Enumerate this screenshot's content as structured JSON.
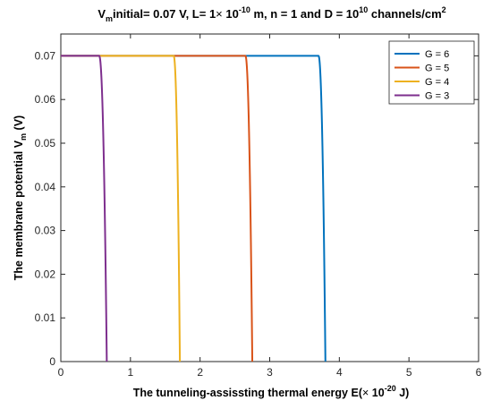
{
  "chart_data": {
    "type": "line",
    "title": {
      "p1": "V",
      "p1_sub": "m",
      "p2": "initial= 0.07 V, L= 1",
      "times": "×",
      "p3": " 10",
      "p3_sup": "-10",
      "p4": " m, n = 1 and D = 10",
      "p4_sup": "10",
      "p5": " channels/cm",
      "p5_sup": "2"
    },
    "xlabel": {
      "p1": "The tunneling-assissting thermal energy E(",
      "times": "×",
      "p2": " 10",
      "p2_sup": "-20",
      "p3": " J)"
    },
    "ylabel": {
      "p1": "The membrane potential V",
      "p1_sub": "m",
      "p2": " (V)"
    },
    "xlim": [
      0,
      6
    ],
    "ylim": [
      0,
      0.075
    ],
    "xticks": [
      0,
      1,
      2,
      3,
      4,
      5,
      6
    ],
    "xtick_labels": [
      "0",
      "1",
      "2",
      "3",
      "4",
      "5",
      "6"
    ],
    "yticks": [
      0,
      0.01,
      0.02,
      0.03,
      0.04,
      0.05,
      0.06,
      0.07
    ],
    "ytick_labels": [
      "0",
      "0.01",
      "0.02",
      "0.03",
      "0.04",
      "0.05",
      "0.06",
      "0.07"
    ],
    "grid": false,
    "legend_position": "top-right",
    "series": [
      {
        "name": "G = 6",
        "color": "#0072BD",
        "drop_start": 3.7,
        "drop_end": 3.8,
        "plateau": 0.07
      },
      {
        "name": "G = 5",
        "color": "#D95319",
        "drop_start": 2.65,
        "drop_end": 2.75,
        "plateau": 0.07
      },
      {
        "name": "G = 4",
        "color": "#EDB120",
        "drop_start": 1.62,
        "drop_end": 1.71,
        "plateau": 0.07
      },
      {
        "name": "G = 3",
        "color": "#7E2F8E",
        "drop_start": 0.55,
        "drop_end": 0.66,
        "plateau": 0.07
      }
    ]
  }
}
